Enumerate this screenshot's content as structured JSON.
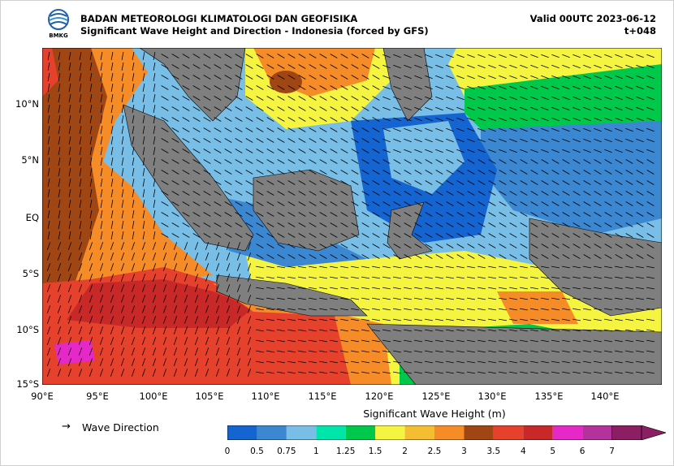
{
  "header": {
    "logo_text": "BMKG",
    "title_line1": "BADAN METEOROLOGI KLIMATOLOGI DAN GEOFISIKA",
    "title_line2": "Significant Wave Height and Direction - Indonesia (forced by GFS)",
    "valid": "Valid 00UTC 2023-06-12",
    "lead": "t+048"
  },
  "map": {
    "lat_labels": [
      "10°N",
      "5°N",
      "EQ",
      "5°S",
      "10°S",
      "15°S"
    ],
    "lon_labels": [
      "90°E",
      "95°E",
      "100°E",
      "105°E",
      "110°E",
      "115°E",
      "120°E",
      "125°E",
      "130°E",
      "135°E",
      "140°E"
    ],
    "colors": {
      "land": "#7f7f7f",
      "arrow": "#000000"
    }
  },
  "legend": {
    "arrow_glyph": "→",
    "direction_label": "Wave Direction",
    "colorbar_title": "Significant Wave Height (m)",
    "tick_labels": [
      "0",
      "0.5",
      "0.75",
      "1",
      "1.25",
      "1.5",
      "2",
      "2.5",
      "3",
      "3.5",
      "4",
      "5",
      "6",
      "7"
    ],
    "colors": [
      "#1464d2",
      "#3c87d2",
      "#78bee6",
      "#00e6aa",
      "#00c84b",
      "#f5f541",
      "#f5be32",
      "#f58c28",
      "#a04614",
      "#e6412d",
      "#c82828",
      "#e628c8",
      "#b4329b",
      "#8c1e64"
    ]
  }
}
